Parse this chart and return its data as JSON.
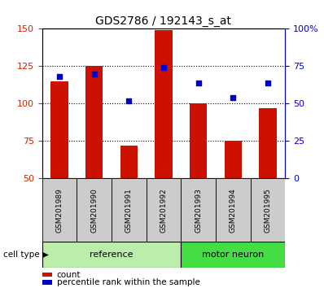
{
  "title": "GDS2786 / 192143_s_at",
  "samples": [
    "GSM201989",
    "GSM201990",
    "GSM201991",
    "GSM201992",
    "GSM201993",
    "GSM201994",
    "GSM201995"
  ],
  "red_values": [
    115,
    125,
    72,
    149,
    100,
    75,
    97
  ],
  "blue_values_pct": [
    68,
    70,
    52,
    74,
    64,
    54,
    64
  ],
  "ymin": 50,
  "ymax": 150,
  "yticks_left": [
    50,
    75,
    100,
    125,
    150
  ],
  "yticks_right_pct": [
    0,
    25,
    50,
    75,
    100
  ],
  "yticks_right_labels": [
    "0",
    "25",
    "50",
    "75",
    "100%"
  ],
  "gridlines_at": [
    75,
    100,
    125
  ],
  "bar_color": "#CC1100",
  "dot_color": "#0000CC",
  "groups": [
    {
      "label": "reference",
      "start": 0,
      "end": 4,
      "color": "#BBEEAA"
    },
    {
      "label": "motor neuron",
      "start": 4,
      "end": 7,
      "color": "#44DD44"
    }
  ],
  "group_label_prefix": "cell type",
  "legend_count_label": "count",
  "legend_pct_label": "percentile rank within the sample",
  "title_fontsize": 10,
  "tick_label_fontsize": 8,
  "bar_width": 0.5,
  "sample_box_color": "#CCCCCC",
  "left_axis_color": "#CC2200",
  "right_axis_color": "#0000CC"
}
